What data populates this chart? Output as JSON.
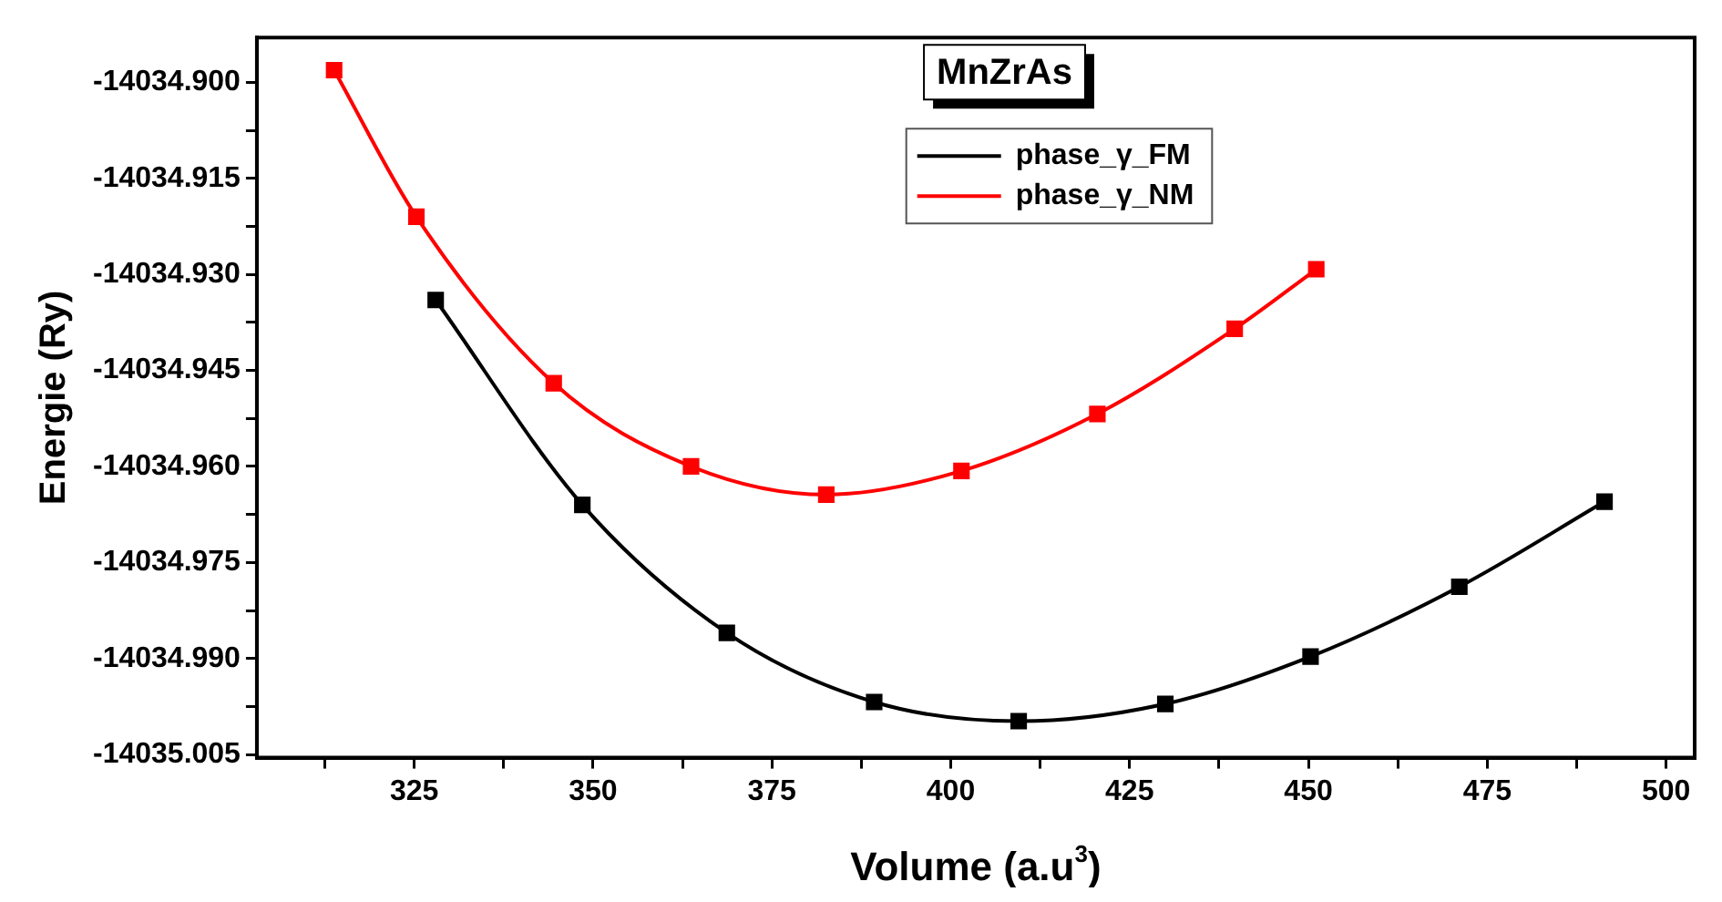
{
  "chart_data": {
    "type": "line",
    "title": "MnZrAs",
    "xlabel": "Volume (a.u$^{3}$)",
    "ylabel": "Energie (Ry)",
    "series": [
      {
        "name": "phase_γ_FM",
        "color": "#000000",
        "x": [
          328,
          348.5,
          368.7,
          389.3,
          409.5,
          430,
          450.3,
          471.1,
          491.4
        ],
        "values": [
          -14034.934,
          -14034.966,
          -14034.986,
          -14034.9968,
          -14034.9998,
          -14034.9971,
          -14034.9897,
          -14034.9788,
          -14034.9655
        ]
      },
      {
        "name": "phase_γ_NM",
        "color": "#ff0000",
        "x": [
          313.8,
          325.3,
          344.5,
          363.7,
          382.6,
          401.5,
          420.5,
          439.7,
          451.1
        ],
        "values": [
          -14034.8981,
          -14034.921,
          -14034.947,
          -14034.96,
          -14034.9644,
          -14034.9607,
          -14034.9518,
          -14034.9385,
          -14034.9292
        ]
      }
    ],
    "xlim": [
      303,
      504
    ],
    "xticks": [
      {
        "value": 312.5,
        "label": null
      },
      325,
      {
        "value": 337.5,
        "label": null
      },
      350,
      {
        "value": 362.5,
        "label": null
      },
      375,
      {
        "value": 387.5,
        "label": null
      },
      400,
      {
        "value": 412.5,
        "label": null
      },
      425,
      {
        "value": 437.5,
        "label": null
      },
      450,
      {
        "value": 462.5,
        "label": null
      },
      475,
      {
        "value": 487.5,
        "label": null
      },
      500
    ],
    "ylim": [
      -14035.0055,
      -14034.893
    ],
    "yticks": [
      {
        "value": -14034.9,
        "label": "-14034.900"
      },
      {
        "value": -14034.9075,
        "label": null
      },
      {
        "value": -14034.915,
        "label": "-14034.915"
      },
      {
        "value": -14034.9225,
        "label": null
      },
      {
        "value": -14034.93,
        "label": "-14034.930"
      },
      {
        "value": -14034.9375,
        "label": null
      },
      {
        "value": -14034.945,
        "label": "-14034.945"
      },
      {
        "value": -14034.9525,
        "label": null
      },
      {
        "value": -14034.96,
        "label": "-14034.960"
      },
      {
        "value": -14034.9675,
        "label": null
      },
      {
        "value": -14034.975,
        "label": "-14034.975"
      },
      {
        "value": -14034.9825,
        "label": null
      },
      {
        "value": -14034.99,
        "label": "-14034.990"
      },
      {
        "value": -14034.9975,
        "label": null
      },
      {
        "value": -14035.005,
        "label": "-14035.005"
      }
    ],
    "grid": false,
    "legend": "top",
    "marker": "square",
    "line_style": "solid"
  }
}
